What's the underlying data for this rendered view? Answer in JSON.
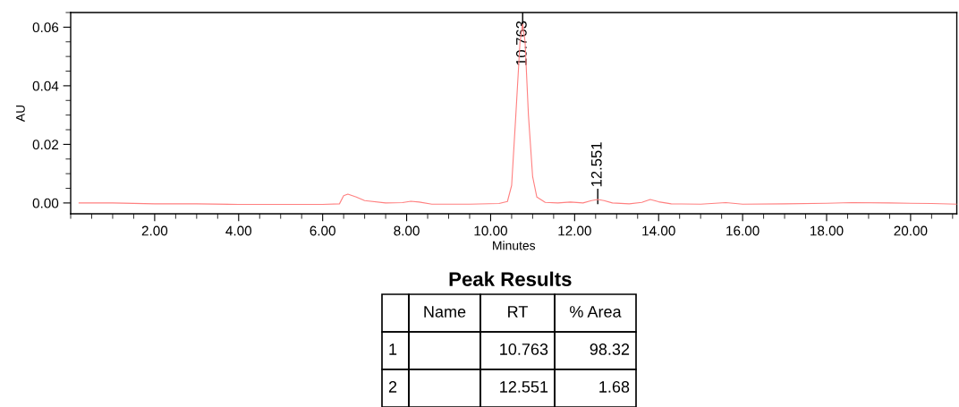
{
  "chart_data": {
    "type": "line",
    "xlabel": "Minutes",
    "ylabel": "AU",
    "x": [
      0.2,
      1.0,
      2.0,
      3.0,
      4.0,
      5.0,
      6.0,
      6.4,
      6.5,
      6.6,
      6.8,
      7.0,
      7.5,
      7.9,
      8.1,
      8.3,
      8.6,
      9.5,
      10.2,
      10.4,
      10.5,
      10.6,
      10.7,
      10.763,
      10.82,
      10.9,
      11.0,
      11.1,
      11.3,
      11.6,
      11.9,
      12.2,
      12.4,
      12.551,
      12.7,
      12.9,
      13.3,
      13.6,
      13.8,
      14.0,
      14.3,
      15.0,
      15.6,
      16.0,
      17.0,
      18.0,
      18.6,
      19.5,
      20.5,
      21.1
    ],
    "series": [
      {
        "color": "#ff8080",
        "values": [
          0.0,
          0.0,
          -0.0003,
          -0.0003,
          -0.0005,
          -0.0005,
          -0.0005,
          -0.0003,
          0.0025,
          0.003,
          0.002,
          0.0008,
          0.0,
          0.0001,
          0.0006,
          0.0003,
          -0.0004,
          -0.0004,
          -0.0002,
          0.0005,
          0.006,
          0.03,
          0.055,
          0.061,
          0.055,
          0.03,
          0.009,
          0.002,
          0.0002,
          0.0,
          0.0003,
          0.0,
          0.0008,
          0.0012,
          0.0008,
          0.0,
          -0.0003,
          0.0002,
          0.0012,
          0.0004,
          -0.0003,
          -0.0004,
          0.0001,
          -0.0004,
          -0.0003,
          -0.0001,
          0.0001,
          0.0,
          -0.0002,
          -0.0004
        ]
      }
    ],
    "xlim": [
      0,
      21.1
    ],
    "ylim": [
      -0.0037,
      0.065
    ],
    "xticks": [
      {
        "value": 2,
        "label": "2.00"
      },
      {
        "value": 4,
        "label": "4.00"
      },
      {
        "value": 6,
        "label": "6.00"
      },
      {
        "value": 8,
        "label": "8.00"
      },
      {
        "value": 10,
        "label": "10.00"
      },
      {
        "value": 12,
        "label": "12.00"
      },
      {
        "value": 14,
        "label": "14.00"
      },
      {
        "value": 16,
        "label": "16.00"
      },
      {
        "value": 18,
        "label": "18.00"
      },
      {
        "value": 20,
        "label": "20.00"
      }
    ],
    "yticks": [
      {
        "value": 0,
        "label": "0.00"
      },
      {
        "value": 0.02,
        "label": "0.02"
      },
      {
        "value": 0.04,
        "label": "0.04"
      },
      {
        "value": 0.06,
        "label": "0.06"
      }
    ],
    "grid": false,
    "marker": "none",
    "line_style": "solid",
    "annotations": [
      {
        "text": "10.763",
        "x": 10.763,
        "y": 0.061
      },
      {
        "text": "12.551",
        "x": 12.551,
        "y": 0.0012
      },
      "Peak Results",
      "Name",
      "RT",
      "% Area",
      "1",
      "10.763",
      "98.32",
      "2",
      "12.551",
      "1.68"
    ]
  }
}
